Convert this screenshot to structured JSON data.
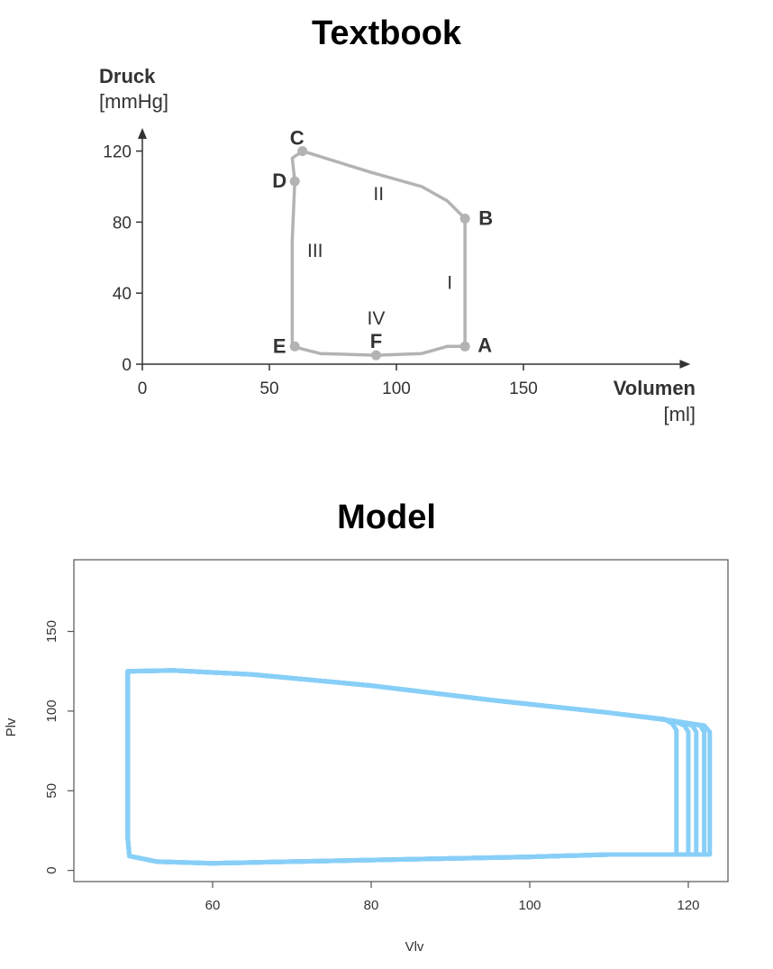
{
  "panels": {
    "textbook_title": "Textbook",
    "model_title": "Model"
  },
  "chart_data": [
    {
      "type": "line",
      "title": "Textbook",
      "xlabel": "Volumen",
      "xunit": "[ml]",
      "ylabel": "Druck",
      "yunit": "[mmHg]",
      "xlim": [
        0,
        215
      ],
      "ylim": [
        0,
        132
      ],
      "xticks": [
        0,
        50,
        100,
        150
      ],
      "yticks": [
        0,
        40,
        80,
        120
      ],
      "grid": false,
      "color": "#b3b3b3",
      "loop": [
        [
          127,
          10
        ],
        [
          127,
          82
        ],
        [
          120,
          92
        ],
        [
          110,
          100
        ],
        [
          90,
          108
        ],
        [
          63,
          120
        ],
        [
          59,
          116
        ],
        [
          60,
          103
        ],
        [
          59,
          70
        ],
        [
          59,
          40
        ],
        [
          59,
          10
        ],
        [
          70,
          6
        ],
        [
          92,
          5
        ],
        [
          110,
          6
        ],
        [
          120,
          10
        ],
        [
          127,
          10
        ]
      ],
      "points": [
        {
          "label": "A",
          "x": 127,
          "y": 10
        },
        {
          "label": "B",
          "x": 127,
          "y": 82
        },
        {
          "label": "C",
          "x": 63,
          "y": 120
        },
        {
          "label": "D",
          "x": 60,
          "y": 103
        },
        {
          "label": "E",
          "x": 60,
          "y": 10
        },
        {
          "label": "F",
          "x": 92,
          "y": 5
        }
      ],
      "phase_labels": [
        {
          "label": "I",
          "x": 121,
          "y": 46
        },
        {
          "label": "II",
          "x": 93,
          "y": 96
        },
        {
          "label": "III",
          "x": 68,
          "y": 64
        },
        {
          "label": "IV",
          "x": 92,
          "y": 26
        }
      ]
    },
    {
      "type": "line",
      "title": "Model",
      "xlabel": "Vlv",
      "ylabel": "Plv",
      "xlim": [
        42.5,
        125
      ],
      "ylim": [
        -7,
        195
      ],
      "xticks": [
        60,
        80,
        100,
        120
      ],
      "yticks": [
        0,
        50,
        100,
        150
      ],
      "grid": false,
      "color": "#88cff8",
      "series": [
        {
          "values": [
            [
              49.3,
              125
            ],
            [
              55,
              125.5
            ],
            [
              65,
              123
            ],
            [
              80,
              116
            ],
            [
              95,
              107
            ],
            [
              110,
              99
            ],
            [
              117,
              95
            ],
            [
              118,
              92
            ],
            [
              118.5,
              88
            ],
            [
              118.5,
              10
            ],
            [
              110,
              10
            ],
            [
              100,
              8.5
            ],
            [
              90,
              7.5
            ],
            [
              80,
              6.5
            ],
            [
              70,
              5.5
            ],
            [
              60,
              4.5
            ],
            [
              53,
              5.5
            ],
            [
              49.5,
              9
            ],
            [
              49.3,
              20
            ],
            [
              49.3,
              125
            ]
          ]
        },
        {
          "values": [
            [
              49.3,
              125
            ],
            [
              55,
              125.5
            ],
            [
              65,
              123
            ],
            [
              80,
              116
            ],
            [
              95,
              107
            ],
            [
              110,
              99
            ],
            [
              118,
              94
            ],
            [
              119.5,
              91
            ],
            [
              120,
              87
            ],
            [
              120,
              10
            ],
            [
              110,
              10
            ],
            [
              100,
              8.5
            ],
            [
              90,
              7.5
            ],
            [
              80,
              6.5
            ],
            [
              70,
              5.5
            ],
            [
              60,
              4.5
            ],
            [
              53,
              5.5
            ],
            [
              49.5,
              9
            ],
            [
              49.3,
              20
            ],
            [
              49.3,
              125
            ]
          ]
        },
        {
          "values": [
            [
              49.3,
              125
            ],
            [
              55,
              125.5
            ],
            [
              65,
              123
            ],
            [
              80,
              116
            ],
            [
              95,
              107
            ],
            [
              110,
              99
            ],
            [
              118,
              94
            ],
            [
              120.5,
              91
            ],
            [
              121,
              87
            ],
            [
              121,
              10
            ],
            [
              110,
              10
            ],
            [
              100,
              8.5
            ],
            [
              90,
              7.5
            ],
            [
              80,
              6.5
            ],
            [
              70,
              5.5
            ],
            [
              60,
              4.5
            ],
            [
              53,
              5.5
            ],
            [
              49.5,
              9
            ],
            [
              49.3,
              20
            ],
            [
              49.3,
              125
            ]
          ]
        },
        {
          "values": [
            [
              49.3,
              125
            ],
            [
              55,
              125.5
            ],
            [
              65,
              123
            ],
            [
              80,
              116
            ],
            [
              95,
              107
            ],
            [
              110,
              99
            ],
            [
              118,
              94
            ],
            [
              121.5,
              91
            ],
            [
              122,
              87
            ],
            [
              122,
              10
            ],
            [
              110,
              10
            ],
            [
              100,
              8.5
            ],
            [
              90,
              7.5
            ],
            [
              80,
              6.5
            ],
            [
              70,
              5.5
            ],
            [
              60,
              4.5
            ],
            [
              53,
              5.5
            ],
            [
              49.5,
              9
            ],
            [
              49.3,
              20
            ],
            [
              49.3,
              125
            ]
          ]
        },
        {
          "values": [
            [
              49.3,
              125
            ],
            [
              55,
              125.5
            ],
            [
              65,
              123
            ],
            [
              80,
              116
            ],
            [
              95,
              107
            ],
            [
              110,
              99
            ],
            [
              118,
              94
            ],
            [
              122,
              91
            ],
            [
              122.7,
              87
            ],
            [
              122.7,
              10
            ],
            [
              110,
              10
            ],
            [
              100,
              8.5
            ],
            [
              90,
              7.5
            ],
            [
              80,
              6.5
            ],
            [
              70,
              5.5
            ],
            [
              60,
              4.5
            ],
            [
              53,
              5.5
            ],
            [
              49.5,
              9
            ],
            [
              49.3,
              20
            ],
            [
              49.3,
              125
            ]
          ]
        }
      ]
    }
  ]
}
